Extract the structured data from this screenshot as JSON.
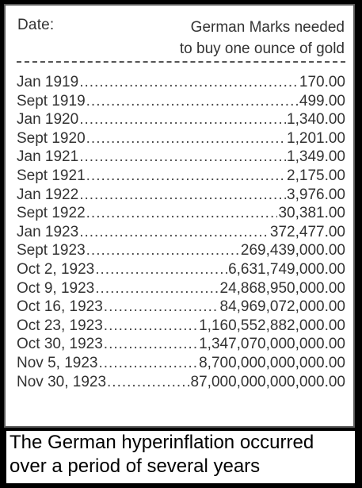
{
  "header": {
    "date_label": "Date:",
    "value_label_line1": "German Marks needed",
    "value_label_line2": "to buy one ounce of gold"
  },
  "rows": [
    {
      "date": "Jan 1919",
      "value": "170.00"
    },
    {
      "date": "Sept 1919",
      "value": "499.00"
    },
    {
      "date": "Jan 1920",
      "value": "1,340.00"
    },
    {
      "date": "Sept 1920",
      "value": "1,201.00"
    },
    {
      "date": "Jan 1921",
      "value": "1,349.00"
    },
    {
      "date": "Sept 1921",
      "value": "2,175.00"
    },
    {
      "date": "Jan 1922",
      "value": "3,976.00"
    },
    {
      "date": "Sept 1922",
      "value": "30,381.00"
    },
    {
      "date": "Jan 1923",
      "value": "372,477.00"
    },
    {
      "date": "Sept 1923",
      "value": "269,439,000.00"
    },
    {
      "date": "Oct 2, 1923",
      "value": "6,631,749,000.00"
    },
    {
      "date": "Oct 9, 1923",
      "value": "24,868,950,000.00"
    },
    {
      "date": "Oct 16, 1923",
      "value": "84,969,072,000.00"
    },
    {
      "date": "Oct 23, 1923",
      "value": "1,160,552,882,000.00"
    },
    {
      "date": "Oct 30, 1923",
      "value": "1,347,070,000,000.00"
    },
    {
      "date": "Nov 5, 1923",
      "value": "8,700,000,000,000.00"
    },
    {
      "date": "Nov 30, 1923",
      "value": "87,000,000,000,000.00"
    }
  ],
  "caption": {
    "line1": "The German hyperinflation occurred",
    "line2": "over a period of several years"
  }
}
